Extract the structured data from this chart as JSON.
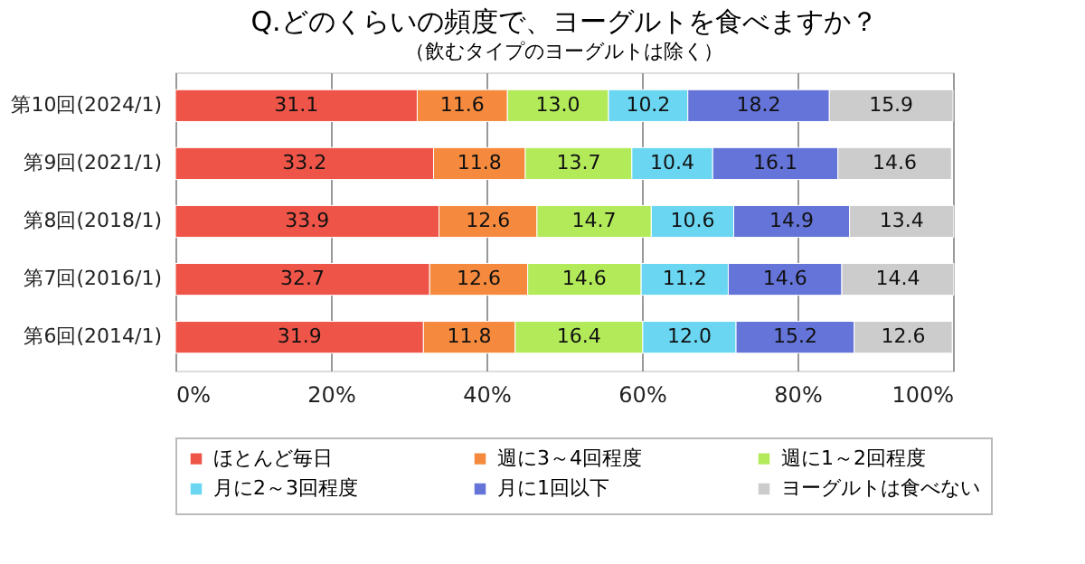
{
  "chart_data": {
    "type": "bar",
    "orientation": "horizontal",
    "stacked": true,
    "title": "Q.どのくらいの頻度で、ヨーグルトを食べますか？",
    "subtitle": "（飲むタイプのヨーグルトは除く）",
    "categories": [
      "第10回(2024/1)",
      "第9回(2021/1)",
      "第8回(2018/1)",
      "第7回(2016/1)",
      "第6回(2014/1)"
    ],
    "series": [
      {
        "name": "ほとんど毎日",
        "color": "#ee5548",
        "values": [
          31.1,
          33.2,
          33.9,
          32.7,
          31.9
        ]
      },
      {
        "name": "週に3～4回程度",
        "color": "#f58a3e",
        "values": [
          11.6,
          11.8,
          12.6,
          12.6,
          11.8
        ]
      },
      {
        "name": "週に1～2回程度",
        "color": "#b3ea5a",
        "values": [
          13.0,
          13.7,
          14.7,
          14.6,
          16.4
        ],
        "value_labels": [
          "13.0",
          "13.7",
          "14.7",
          "14.6",
          "16.4"
        ]
      },
      {
        "name": "月に2～3回程度",
        "color": "#6ad6f2",
        "values": [
          10.2,
          10.4,
          10.6,
          11.2,
          12.0
        ],
        "value_labels": [
          "10.2",
          "10.4",
          "10.6",
          "11.2",
          "12.0"
        ]
      },
      {
        "name": "月に1回以下",
        "color": "#6474d8",
        "values": [
          18.2,
          16.1,
          14.9,
          14.6,
          15.2
        ]
      },
      {
        "name": "ヨーグルトは食べない",
        "color": "#cccccc",
        "values": [
          15.9,
          14.6,
          13.4,
          14.4,
          12.6
        ]
      }
    ],
    "xlim": [
      0,
      100
    ],
    "xticks": [
      {
        "value": 0,
        "label": "0%"
      },
      {
        "value": 20,
        "label": "20%"
      },
      {
        "value": 40,
        "label": "40%"
      },
      {
        "value": 60,
        "label": "60%"
      },
      {
        "value": 80,
        "label": "80%"
      },
      {
        "value": 100,
        "label": "100%"
      }
    ],
    "grid": "x",
    "legend": "bottom",
    "data_labels": true
  }
}
